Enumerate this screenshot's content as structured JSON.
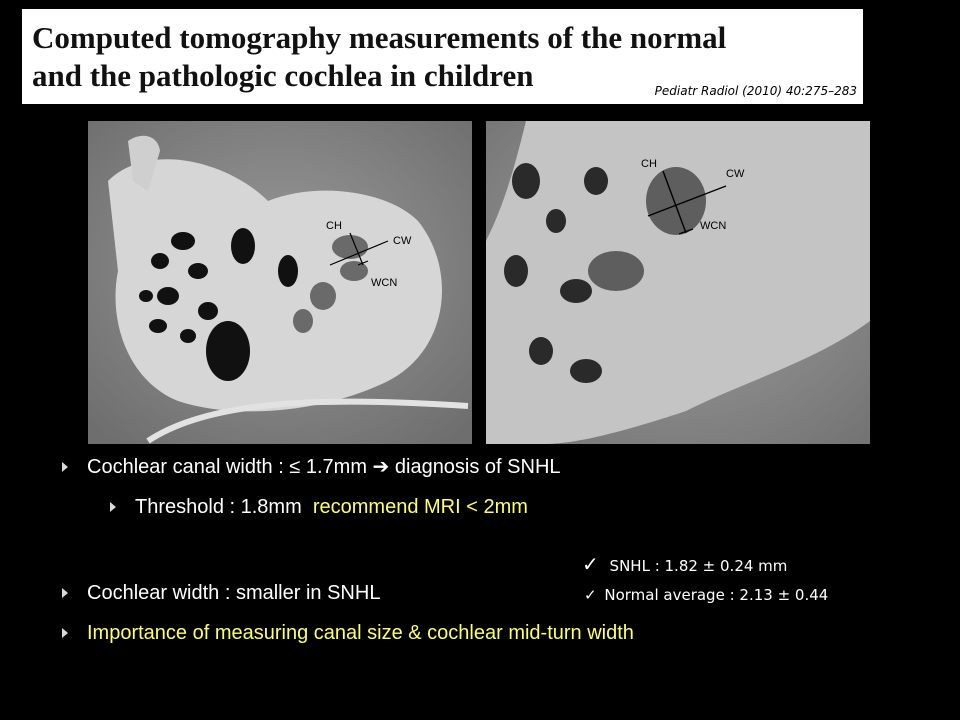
{
  "title": {
    "line1": "Computed tomography measurements of the normal",
    "line2": "and the pathologic cochlea in children",
    "citation": "Pediatr Radiol (2010) 40:275–283"
  },
  "images": {
    "left": {
      "labels": {
        "ch": "CH",
        "cw": "CW",
        "wcn": "WCN"
      }
    },
    "right": {
      "labels": {
        "ch": "CH",
        "cw": "CW",
        "wcn": "WCN"
      }
    }
  },
  "bullets": {
    "b1": {
      "text": "Cochlear canal width : ≤ 1.7mm",
      "arrow": "➔",
      "rest": "diagnosis of SNHL"
    },
    "b1_sub": {
      "text": "Threshold : 1.8mm",
      "highlight": "recommend MRI < 2mm"
    },
    "b2": {
      "text": "Cochlear width : smaller in SNHL"
    },
    "b3": {
      "text": "Importance of measuring canal size & cochlear mid-turn width"
    }
  },
  "stats": {
    "snhl": "SNHL : 1.82 ± 0.24 mm",
    "normal": "Normal average : 2.13 ± 0.44",
    "check": "✓"
  },
  "colors": {
    "highlight": "#ffff66",
    "background": "#000000"
  }
}
